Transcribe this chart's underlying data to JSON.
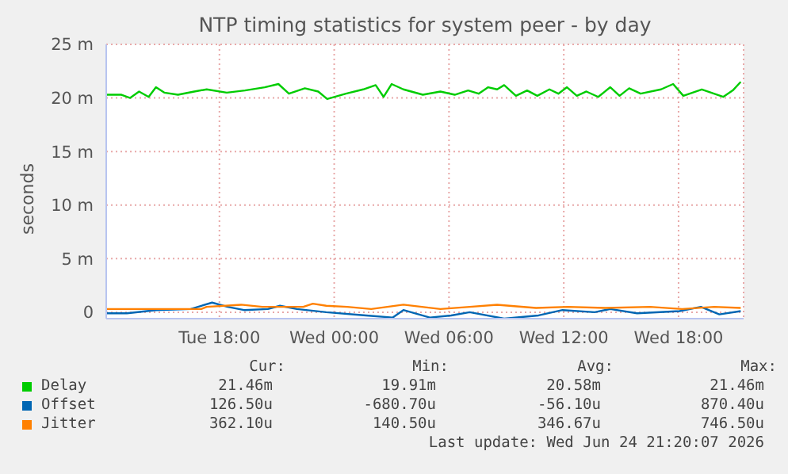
{
  "chart_data": {
    "type": "line",
    "title": "NTP timing statistics for system peer - by day",
    "ylabel": "seconds",
    "xlim": [
      "2026-06-23T12:05",
      "2026-06-24T21:24"
    ],
    "xticks": [
      {
        "value": "2026-06-23T18:00",
        "label": "Tue 18:00"
      },
      {
        "value": "2026-06-24T00:00",
        "label": "Wed 00:00"
      },
      {
        "value": "2026-06-24T06:00",
        "label": "Wed 06:00"
      },
      {
        "value": "2026-06-24T12:00",
        "label": "Wed 12:00"
      },
      {
        "value": "2026-06-24T18:00",
        "label": "Wed 18:00"
      }
    ],
    "ylim": [
      -0.6,
      25
    ],
    "yticks": [
      {
        "value": 0,
        "label": "0"
      },
      {
        "value": 5,
        "label": "5 m"
      },
      {
        "value": 10,
        "label": "10 m"
      },
      {
        "value": 15,
        "label": "15 m"
      },
      {
        "value": 20,
        "label": "20 m"
      },
      {
        "value": 25,
        "label": "25 m"
      }
    ],
    "grid": true,
    "legend": "bottom",
    "series": [
      {
        "name": "Delay",
        "color": "#00cc00",
        "x": [
          "2026-06-23T12:05",
          "2026-06-23T12:53",
          "2026-06-23T13:20",
          "2026-06-23T13:48",
          "2026-06-23T14:18",
          "2026-06-23T14:41",
          "2026-06-23T15:07",
          "2026-06-23T15:50",
          "2026-06-23T16:41",
          "2026-06-23T17:20",
          "2026-06-23T18:23",
          "2026-06-23T19:20",
          "2026-06-23T20:22",
          "2026-06-23T21:05",
          "2026-06-23T21:38",
          "2026-06-23T22:28",
          "2026-06-23T23:10",
          "2026-06-23T23:38",
          "2026-06-24T00:37",
          "2026-06-24T01:31",
          "2026-06-24T02:10",
          "2026-06-24T02:35",
          "2026-06-24T03:00",
          "2026-06-24T03:37",
          "2026-06-24T04:38",
          "2026-06-24T05:33",
          "2026-06-24T06:18",
          "2026-06-24T07:00",
          "2026-06-24T07:33",
          "2026-06-24T08:03",
          "2026-06-24T08:31",
          "2026-06-24T08:53",
          "2026-06-24T09:30",
          "2026-06-24T10:05",
          "2026-06-24T10:37",
          "2026-06-24T11:15",
          "2026-06-24T11:43",
          "2026-06-24T12:10",
          "2026-06-24T12:41",
          "2026-06-24T13:11",
          "2026-06-24T13:48",
          "2026-06-24T14:26",
          "2026-06-24T14:55",
          "2026-06-24T15:25",
          "2026-06-24T16:01",
          "2026-06-24T17:05",
          "2026-06-24T17:43",
          "2026-06-24T18:15",
          "2026-06-24T19:13",
          "2026-06-24T20:20",
          "2026-06-24T20:50",
          "2026-06-24T21:15"
        ],
        "values": [
          20.3,
          20.3,
          20.0,
          20.6,
          20.1,
          21.0,
          20.5,
          20.3,
          20.6,
          20.8,
          20.5,
          20.7,
          21.0,
          21.3,
          20.4,
          20.9,
          20.6,
          19.9,
          20.4,
          20.8,
          21.2,
          20.1,
          21.3,
          20.8,
          20.3,
          20.6,
          20.3,
          20.7,
          20.4,
          21.0,
          20.8,
          21.2,
          20.2,
          20.7,
          20.2,
          20.8,
          20.4,
          21.0,
          20.2,
          20.6,
          20.1,
          21.0,
          20.2,
          20.9,
          20.4,
          20.8,
          21.3,
          20.2,
          20.8,
          20.1,
          20.7,
          21.5
        ]
      },
      {
        "name": "Offset",
        "color": "#0066b3",
        "x": [
          "2026-06-23T12:05",
          "2026-06-23T13:10",
          "2026-06-23T14:41",
          "2026-06-23T16:30",
          "2026-06-23T17:37",
          "2026-06-23T18:26",
          "2026-06-23T19:17",
          "2026-06-23T20:32",
          "2026-06-23T21:10",
          "2026-06-23T22:03",
          "2026-06-23T23:35",
          "2026-06-24T01:40",
          "2026-06-24T03:03",
          "2026-06-24T03:37",
          "2026-06-24T05:00",
          "2026-06-24T06:07",
          "2026-06-24T07:05",
          "2026-06-24T08:53",
          "2026-06-24T10:41",
          "2026-06-24T11:56",
          "2026-06-24T13:37",
          "2026-06-24T14:26",
          "2026-06-24T15:50",
          "2026-06-24T18:03",
          "2026-06-24T19:10",
          "2026-06-24T20:08",
          "2026-06-24T21:15"
        ],
        "values": [
          -0.1,
          -0.1,
          0.2,
          0.3,
          0.9,
          0.5,
          0.2,
          0.3,
          0.6,
          0.3,
          0,
          -0.3,
          -0.5,
          0.2,
          -0.5,
          -0.3,
          0,
          -0.6,
          -0.3,
          0.2,
          0,
          0.3,
          -0.1,
          0.1,
          0.5,
          -0.2,
          0.1
        ]
      },
      {
        "name": "Jitter",
        "color": "#ff8000",
        "x": [
          "2026-06-23T12:05",
          "2026-06-23T13:43",
          "2026-06-23T15:40",
          "2026-06-23T17:03",
          "2026-06-23T17:20",
          "2026-06-23T19:08",
          "2026-06-23T20:15",
          "2026-06-23T22:23",
          "2026-06-23T22:53",
          "2026-06-23T23:35",
          "2026-06-24T00:41",
          "2026-06-24T01:56",
          "2026-06-24T03:37",
          "2026-06-24T05:33",
          "2026-06-24T07:05",
          "2026-06-24T08:31",
          "2026-06-24T10:33",
          "2026-06-24T12:13",
          "2026-06-24T14:10",
          "2026-06-24T16:31",
          "2026-06-24T18:11",
          "2026-06-24T19:52",
          "2026-06-24T21:15"
        ],
        "values": [
          0.3,
          0.3,
          0.3,
          0.3,
          0.5,
          0.7,
          0.5,
          0.5,
          0.8,
          0.6,
          0.5,
          0.3,
          0.7,
          0.3,
          0.5,
          0.7,
          0.4,
          0.5,
          0.4,
          0.5,
          0.3,
          0.5,
          0.4
        ]
      }
    ],
    "annotations": [
      "Cur:",
      "Min:",
      "Avg:",
      "Max:",
      "21.46m",
      "19.91m",
      "20.58m",
      "21.46m",
      "126.50u",
      "-680.70u",
      "-56.10u",
      "870.40u",
      "362.10u",
      "140.50u",
      "346.67u",
      "746.50u",
      "Last update: Wed Jun 24 21:20:07 2026"
    ]
  }
}
